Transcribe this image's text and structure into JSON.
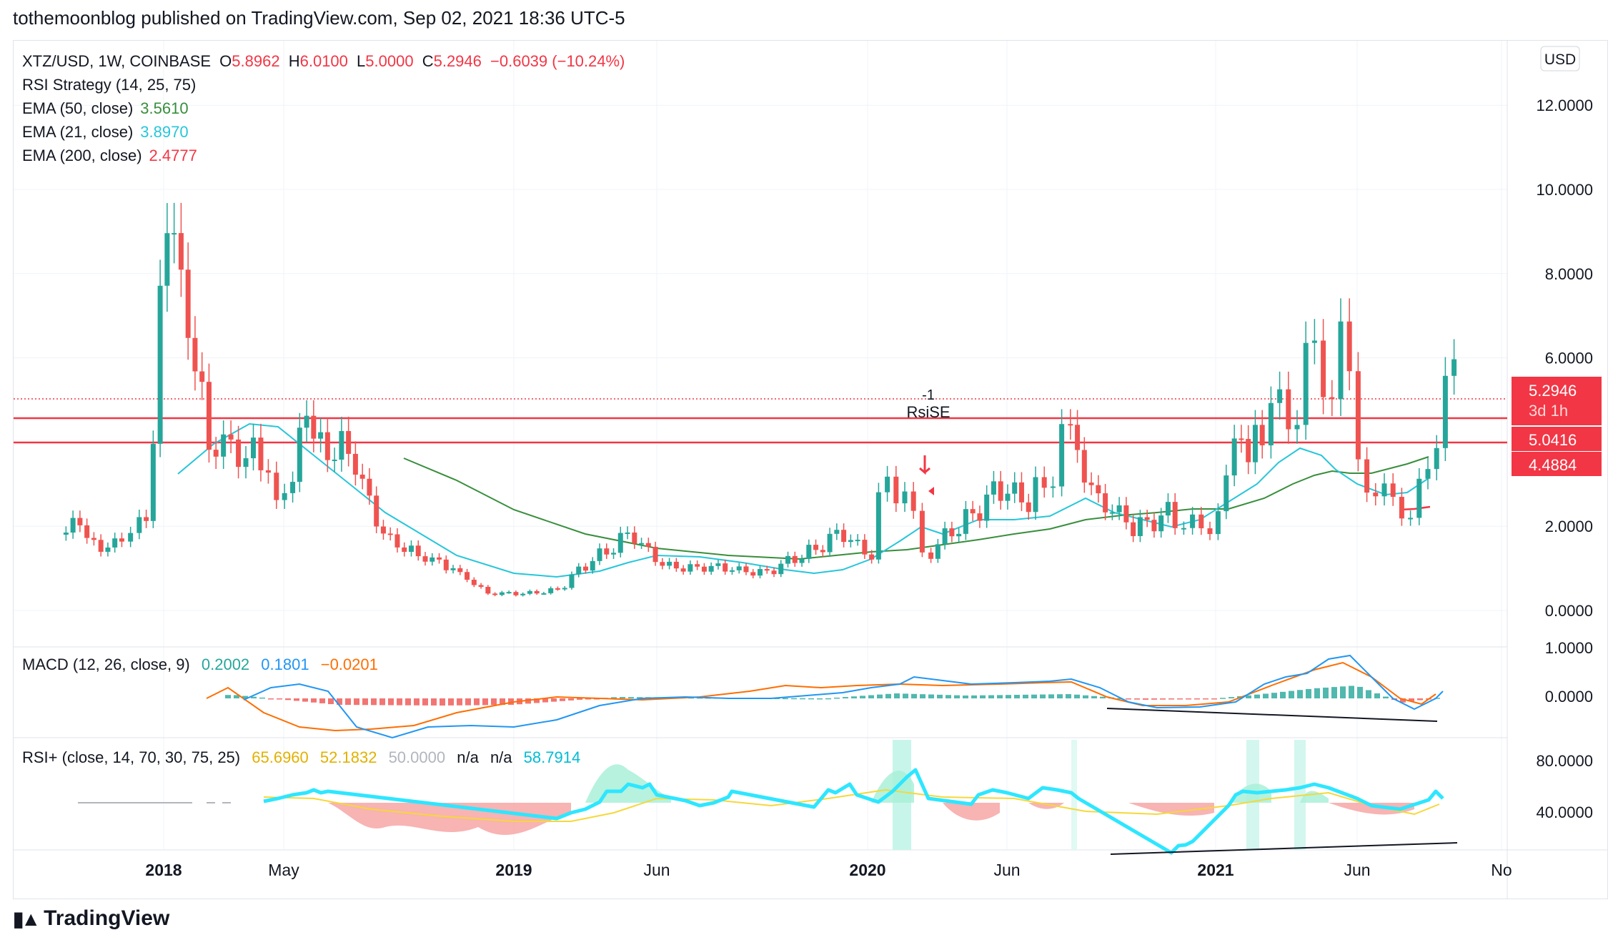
{
  "header": "tothemoonblog published on TradingView.com, Sep 02, 2021 18:36 UTC-5",
  "footer": {
    "brand": "TradingView",
    "logo_icon": "tradingview-logo-icon"
  },
  "currency_button": "USD",
  "legend": {
    "symbol": "XTZ/USD, 1W, COINBASE",
    "o_label": "O",
    "o_value": "5.8962",
    "h_label": "H",
    "h_value": "6.0100",
    "l_label": "L",
    "l_value": "5.0000",
    "c_label": "C",
    "c_value": "5.2946",
    "change": "−0.6039 (−10.24%)",
    "rsi_strategy": "RSI Strategy (14, 25, 75)",
    "ema50_label": "EMA (50, close)",
    "ema50_value": "3.5610",
    "ema21_label": "EMA (21, close)",
    "ema21_value": "3.8970",
    "ema200_label": "EMA (200, close)",
    "ema200_value": "2.4777"
  },
  "macd_legend": {
    "label": "MACD (12, 26, close, 9)",
    "v1": "0.2002",
    "v2": "0.1801",
    "v3": "−0.0201"
  },
  "rsi_legend": {
    "label": "RSI+ (close, 14, 70, 30, 75, 25)",
    "v1": "65.6960",
    "v2": "52.1832",
    "v3": "50.0000",
    "v4": "n/a",
    "v5": "n/a",
    "v6": "58.7914"
  },
  "price_labels": {
    "current": "5.2946",
    "countdown": "3d 1h",
    "line1": "5.0416",
    "line2": "4.4884"
  },
  "annotations": {
    "order_qty": "-1",
    "signal": "RsiSE"
  },
  "colors": {
    "up": "#26a69a",
    "down": "#ef5350",
    "ema50": "#388e3c",
    "ema21": "#26c6da",
    "ema200": "#f23645",
    "hline": "#f23645",
    "macd": "#2196f3",
    "signal": "#ff6d00",
    "rsi": "#2ee6ff",
    "rsima": "#f5d83a"
  },
  "chart_data": [
    {
      "type": "candlestick",
      "title": "XTZ/USD, 1W, COINBASE",
      "x_ticks": [
        "2018",
        "May",
        "2019",
        "Jun",
        "2020",
        "Jun",
        "2021",
        "Jun",
        "No"
      ],
      "y_ticks": [
        "12.0000",
        "10.0000",
        "8.0000",
        "6.0000",
        "2.0000",
        "0.0000"
      ],
      "ylim": [
        -0.8,
        13.4
      ],
      "horizontal_lines": [
        5.0416,
        4.4884
      ],
      "series": [
        {
          "name": "price",
          "x": [
            2017.72,
            2017.8,
            2017.88,
            2017.93,
            2017.97,
            2018.05,
            2018.15,
            2018.3,
            2018.37,
            2018.45,
            2018.55,
            2018.65,
            2018.75,
            2018.85,
            2018.95,
            2019.05,
            2019.15,
            2019.25,
            2019.35,
            2019.45,
            2019.55,
            2019.65,
            2019.75,
            2019.85,
            2019.95,
            2020.05,
            2020.1,
            2020.15,
            2020.2,
            2020.3,
            2020.4,
            2020.5,
            2020.55,
            2020.6,
            2020.7,
            2020.8,
            2020.9,
            2020.95,
            2021.0,
            2021.07,
            2021.15,
            2021.2,
            2021.25,
            2021.3,
            2021.35,
            2021.4,
            2021.45,
            2021.5,
            2021.55,
            2021.6,
            2021.65,
            2021.7
          ],
          "y": [
            2.0,
            1.5,
            1.6,
            2.5,
            10.5,
            4.0,
            3.6,
            2.8,
            4.8,
            3.8,
            1.8,
            1.3,
            1.0,
            0.4,
            0.4,
            0.5,
            1.2,
            1.8,
            1.1,
            1.0,
            1.0,
            0.9,
            1.3,
            1.8,
            1.3,
            3.5,
            2.6,
            1.5,
            2.0,
            2.8,
            2.6,
            3.1,
            4.2,
            2.5,
            2.0,
            2.3,
            1.9,
            2.0,
            2.8,
            4.2,
            4.9,
            4.3,
            6.4,
            5.0,
            7.0,
            3.5,
            2.8,
            2.6,
            2.3,
            3.2,
            5.9,
            5.29
          ]
        }
      ]
    },
    {
      "type": "line",
      "title": "MACD (12, 26, close, 9)",
      "y_ticks": [
        "1.0000",
        "0.0000"
      ],
      "ylim": [
        -0.75,
        1.05
      ],
      "series": [
        {
          "name": "MACD",
          "x": [
            2017.97,
            2018.2,
            2018.5,
            2018.8,
            2019.0,
            2019.3,
            2019.6,
            2019.9,
            2020.1,
            2020.3,
            2020.6,
            2020.8,
            2021.0,
            2021.15,
            2021.3,
            2021.42,
            2021.55,
            2021.7
          ],
          "y": [
            0.1,
            0.25,
            -0.45,
            -0.5,
            -0.45,
            0.1,
            0.05,
            0.0,
            0.35,
            0.2,
            0.3,
            -0.1,
            -0.05,
            0.3,
            0.7,
            0.9,
            -0.3,
            0.2
          ]
        }
      ]
    },
    {
      "type": "line",
      "title": "RSI+ (close, 14, 70, 30, 75, 25)",
      "y_ticks": [
        "80.0000",
        "40.0000"
      ],
      "ylim": [
        22,
        92
      ],
      "series": [
        {
          "name": "RSI",
          "x": [
            2018.15,
            2018.3,
            2018.5,
            2018.75,
            2019.0,
            2019.2,
            2019.3,
            2019.5,
            2019.75,
            2019.9,
            2020.05,
            2020.15,
            2020.3,
            2020.45,
            2020.55,
            2020.7,
            2020.85,
            2021.0,
            2021.1,
            2021.25,
            2021.35,
            2021.45,
            2021.6,
            2021.7
          ],
          "y": [
            55,
            55,
            40,
            38,
            45,
            70,
            58,
            55,
            56,
            60,
            83,
            52,
            60,
            62,
            64,
            45,
            40,
            42,
            60,
            72,
            62,
            43,
            43,
            58.79
          ]
        }
      ]
    }
  ]
}
